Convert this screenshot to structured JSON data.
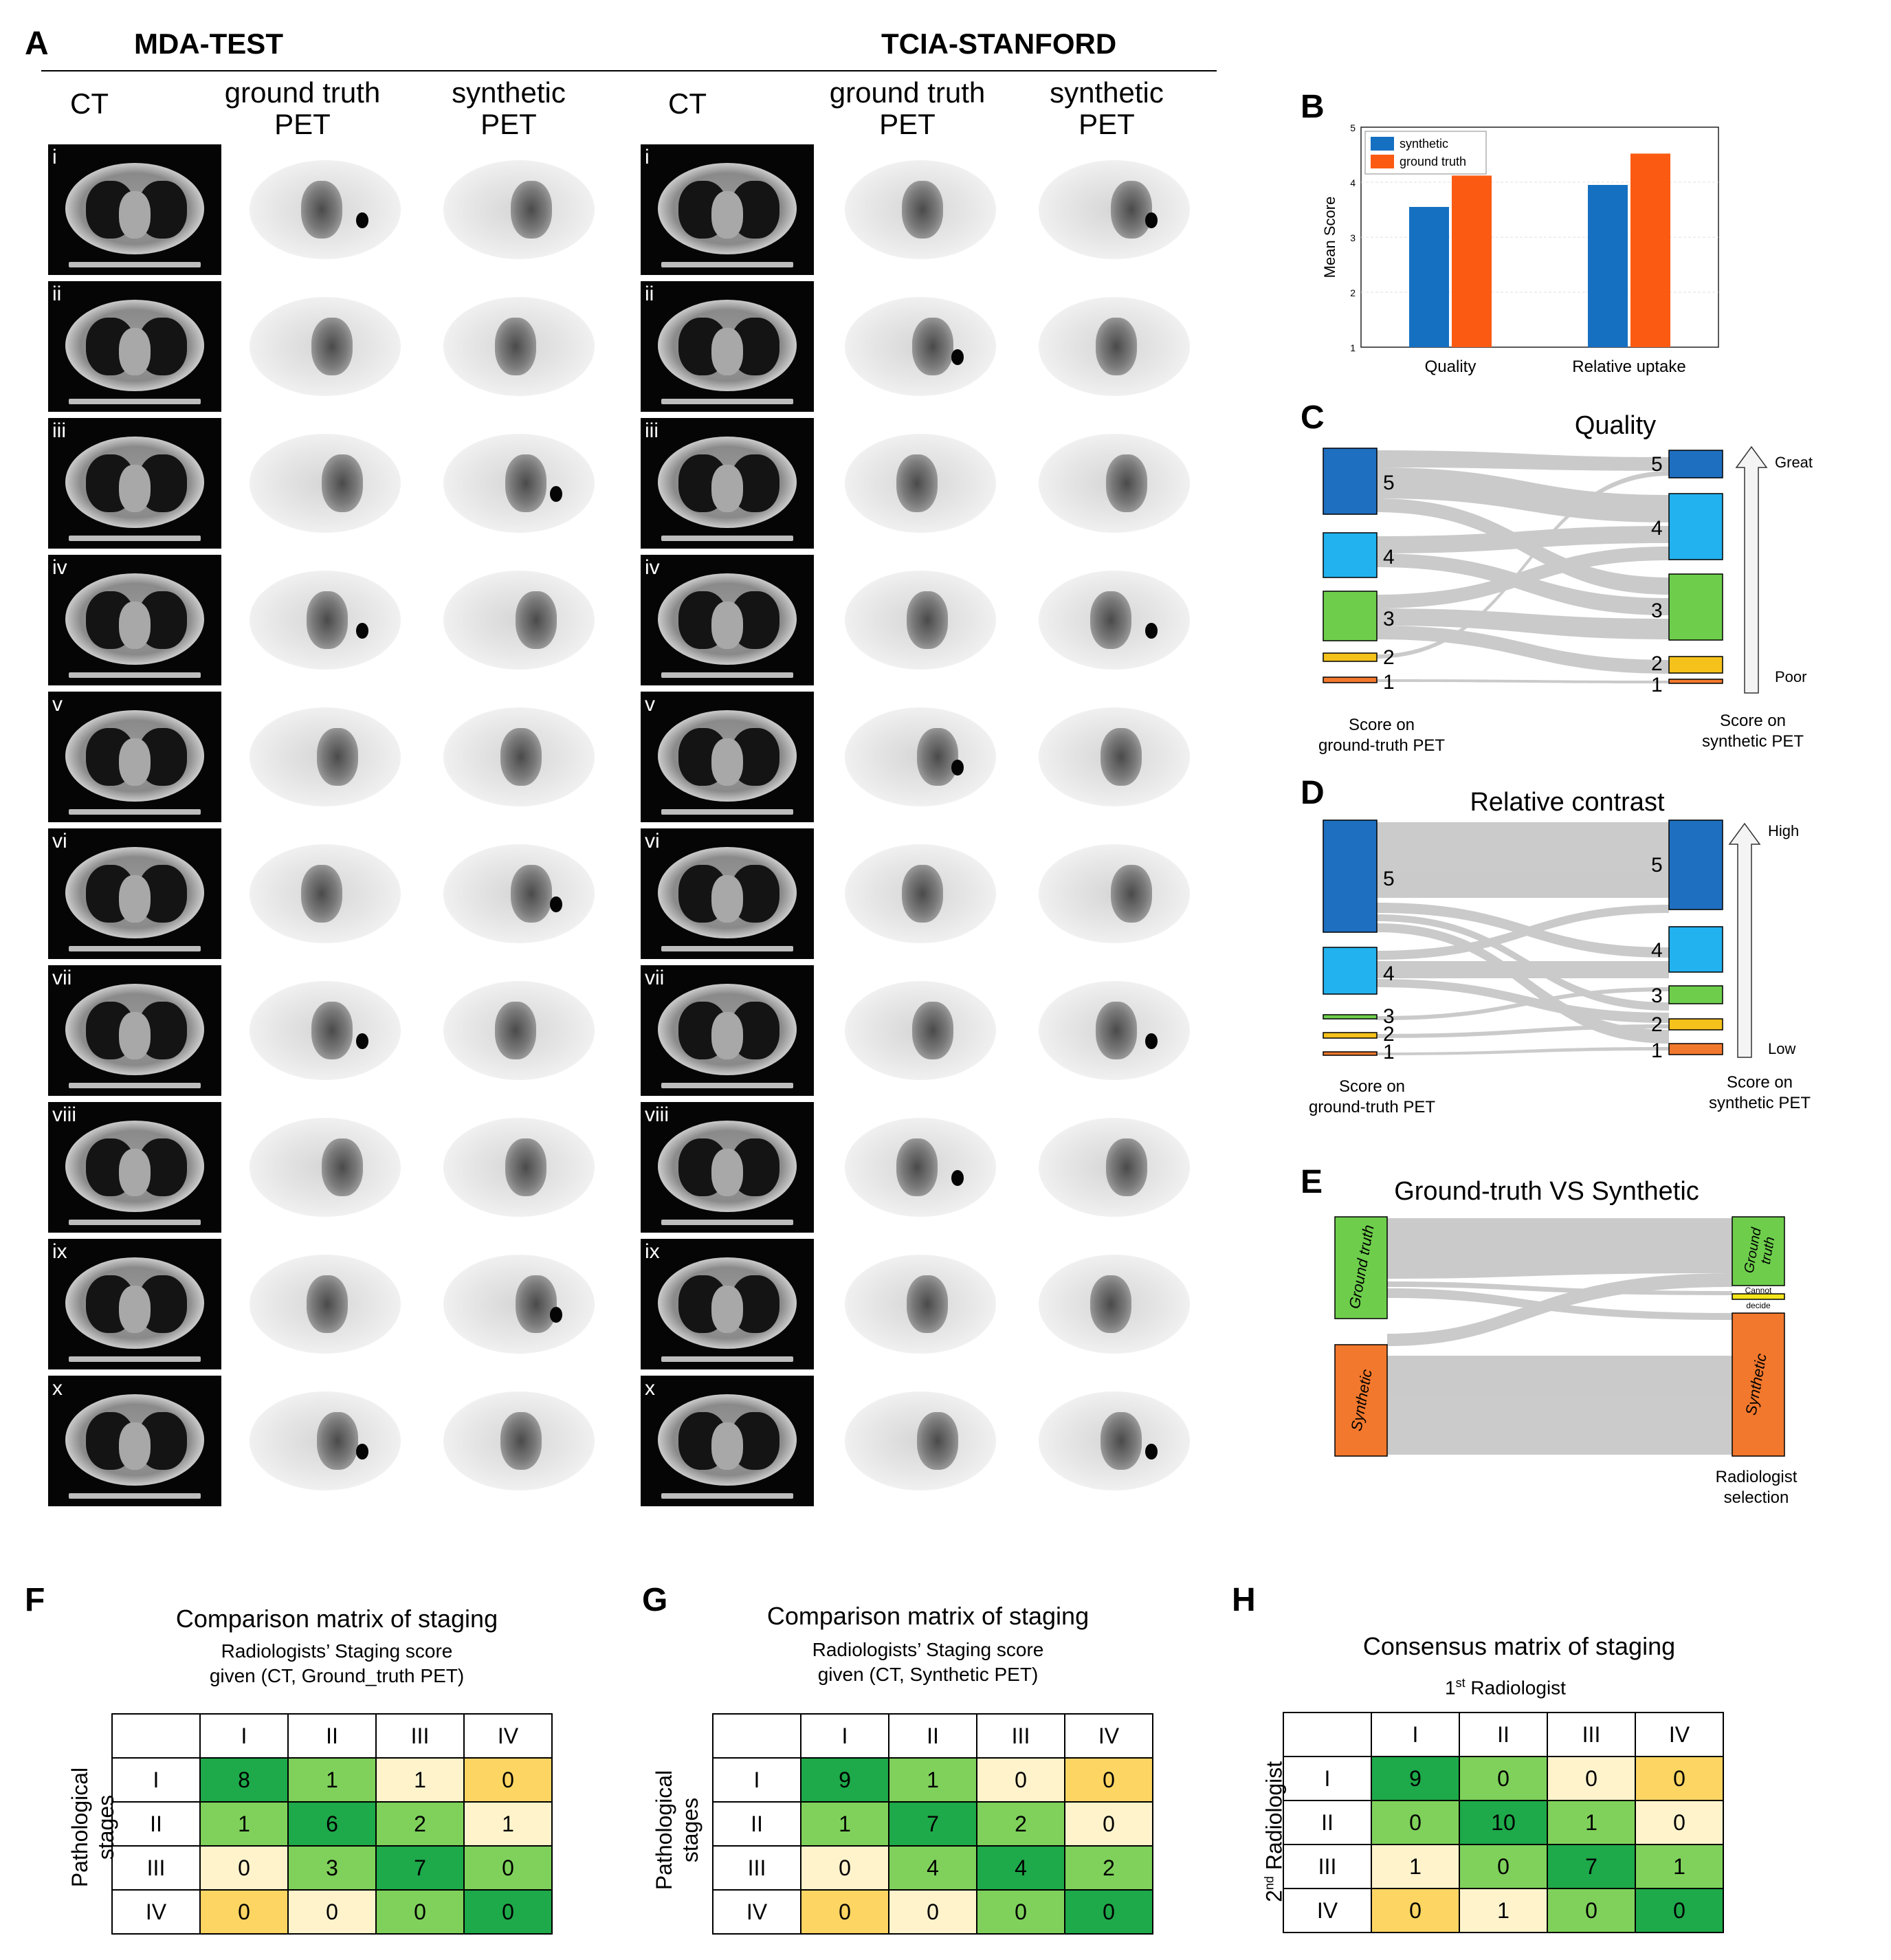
{
  "panel_labels": {
    "a": "A",
    "b": "B",
    "c": "C",
    "d": "D",
    "e": "E",
    "f": "F",
    "g": "G",
    "h": "H"
  },
  "panel_a": {
    "dataset_left": "MDA-TEST",
    "dataset_right": "TCIA-STANFORD",
    "col_headers": [
      "CT",
      "ground truth\nPET",
      "synthetic\nPET",
      "CT",
      "ground truth\nPET",
      "synthetic\nPET"
    ],
    "row_labels": [
      "i",
      "ii",
      "iii",
      "iv",
      "v",
      "vi",
      "vii",
      "viii",
      "ix",
      "x"
    ]
  },
  "chart_data": {
    "type": "bar",
    "categories": [
      "Quality",
      "Relative uptake"
    ],
    "series": [
      {
        "name": "synthetic",
        "values": [
          3.55,
          3.95
        ],
        "color": "#1570c1"
      },
      {
        "name": "ground truth",
        "values": [
          4.12,
          4.52
        ],
        "color": "#fb5a12"
      }
    ],
    "ylabel": "Mean Score",
    "ylim": [
      1,
      5
    ],
    "yticks": [
      "1",
      "2",
      "3",
      "4",
      "5"
    ],
    "legend": "top-left"
  },
  "panel_c": {
    "title": "Quality",
    "left_caption": "Score on\nground-truth PET",
    "right_caption": "Score on\nsynthetic PET",
    "arrow_top": "Great",
    "arrow_bottom": "Poor",
    "levels": [
      "5",
      "4",
      "3",
      "2",
      "1"
    ]
  },
  "panel_d": {
    "title": "Relative contrast",
    "left_caption": "Score on\nground-truth PET",
    "right_caption": "Score on\nsynthetic PET",
    "arrow_top": "High",
    "arrow_bottom": "Low",
    "levels": [
      "5",
      "4",
      "3",
      "2",
      "1"
    ]
  },
  "panel_e": {
    "title": "Ground-truth VS Synthetic",
    "left_top": "Ground truth",
    "left_bottom": "Synthetic",
    "right_top": "Ground\ntruth",
    "right_mid": "Cannot\ndecide",
    "right_bottom": "Synthetic",
    "caption": "Radiologist\nselection"
  },
  "colors": {
    "dark_blue": "#1f6fc1",
    "light_blue": "#22b2ef",
    "green": "#6ece4c",
    "yellow": "#f5c21b",
    "orange": "#f2782d",
    "mx_dark": "#1ea94a",
    "mx_mid": "#7fd15b",
    "mx_light": "#fff3cc",
    "mx_yellow": "#fdd563"
  },
  "panel_f": {
    "title": "Comparison matrix of staging",
    "subtitle": "Radiologists’ Staging score\ngiven (CT, Ground_truth PET)",
    "row_axis": "Pathological\nstages",
    "headers": [
      "I",
      "II",
      "III",
      "IV"
    ],
    "rows": [
      "I",
      "II",
      "III",
      "IV"
    ],
    "values": [
      [
        "8",
        "1",
        "1",
        "0"
      ],
      [
        "1",
        "6",
        "2",
        "1"
      ],
      [
        "0",
        "3",
        "7",
        "0"
      ],
      [
        "0",
        "0",
        "0",
        "0"
      ]
    ]
  },
  "panel_g": {
    "title": "Comparison matrix of staging",
    "subtitle": "Radiologists’ Staging score\ngiven (CT, Synthetic PET)",
    "row_axis": "Pathological\nstages",
    "headers": [
      "I",
      "II",
      "III",
      "IV"
    ],
    "rows": [
      "I",
      "II",
      "III",
      "IV"
    ],
    "values": [
      [
        "9",
        "1",
        "0",
        "0"
      ],
      [
        "1",
        "7",
        "2",
        "0"
      ],
      [
        "0",
        "4",
        "4",
        "2"
      ],
      [
        "0",
        "0",
        "0",
        "0"
      ]
    ]
  },
  "panel_h": {
    "title": "Consensus matrix of staging",
    "col_axis": "1st Radiologist",
    "row_axis": "2nd Radiologist",
    "headers": [
      "I",
      "II",
      "III",
      "IV"
    ],
    "rows": [
      "I",
      "II",
      "III",
      "IV"
    ],
    "values": [
      [
        "9",
        "0",
        "0",
        "0"
      ],
      [
        "0",
        "10",
        "1",
        "0"
      ],
      [
        "1",
        "0",
        "7",
        "1"
      ],
      [
        "0",
        "1",
        "0",
        "0"
      ]
    ]
  }
}
